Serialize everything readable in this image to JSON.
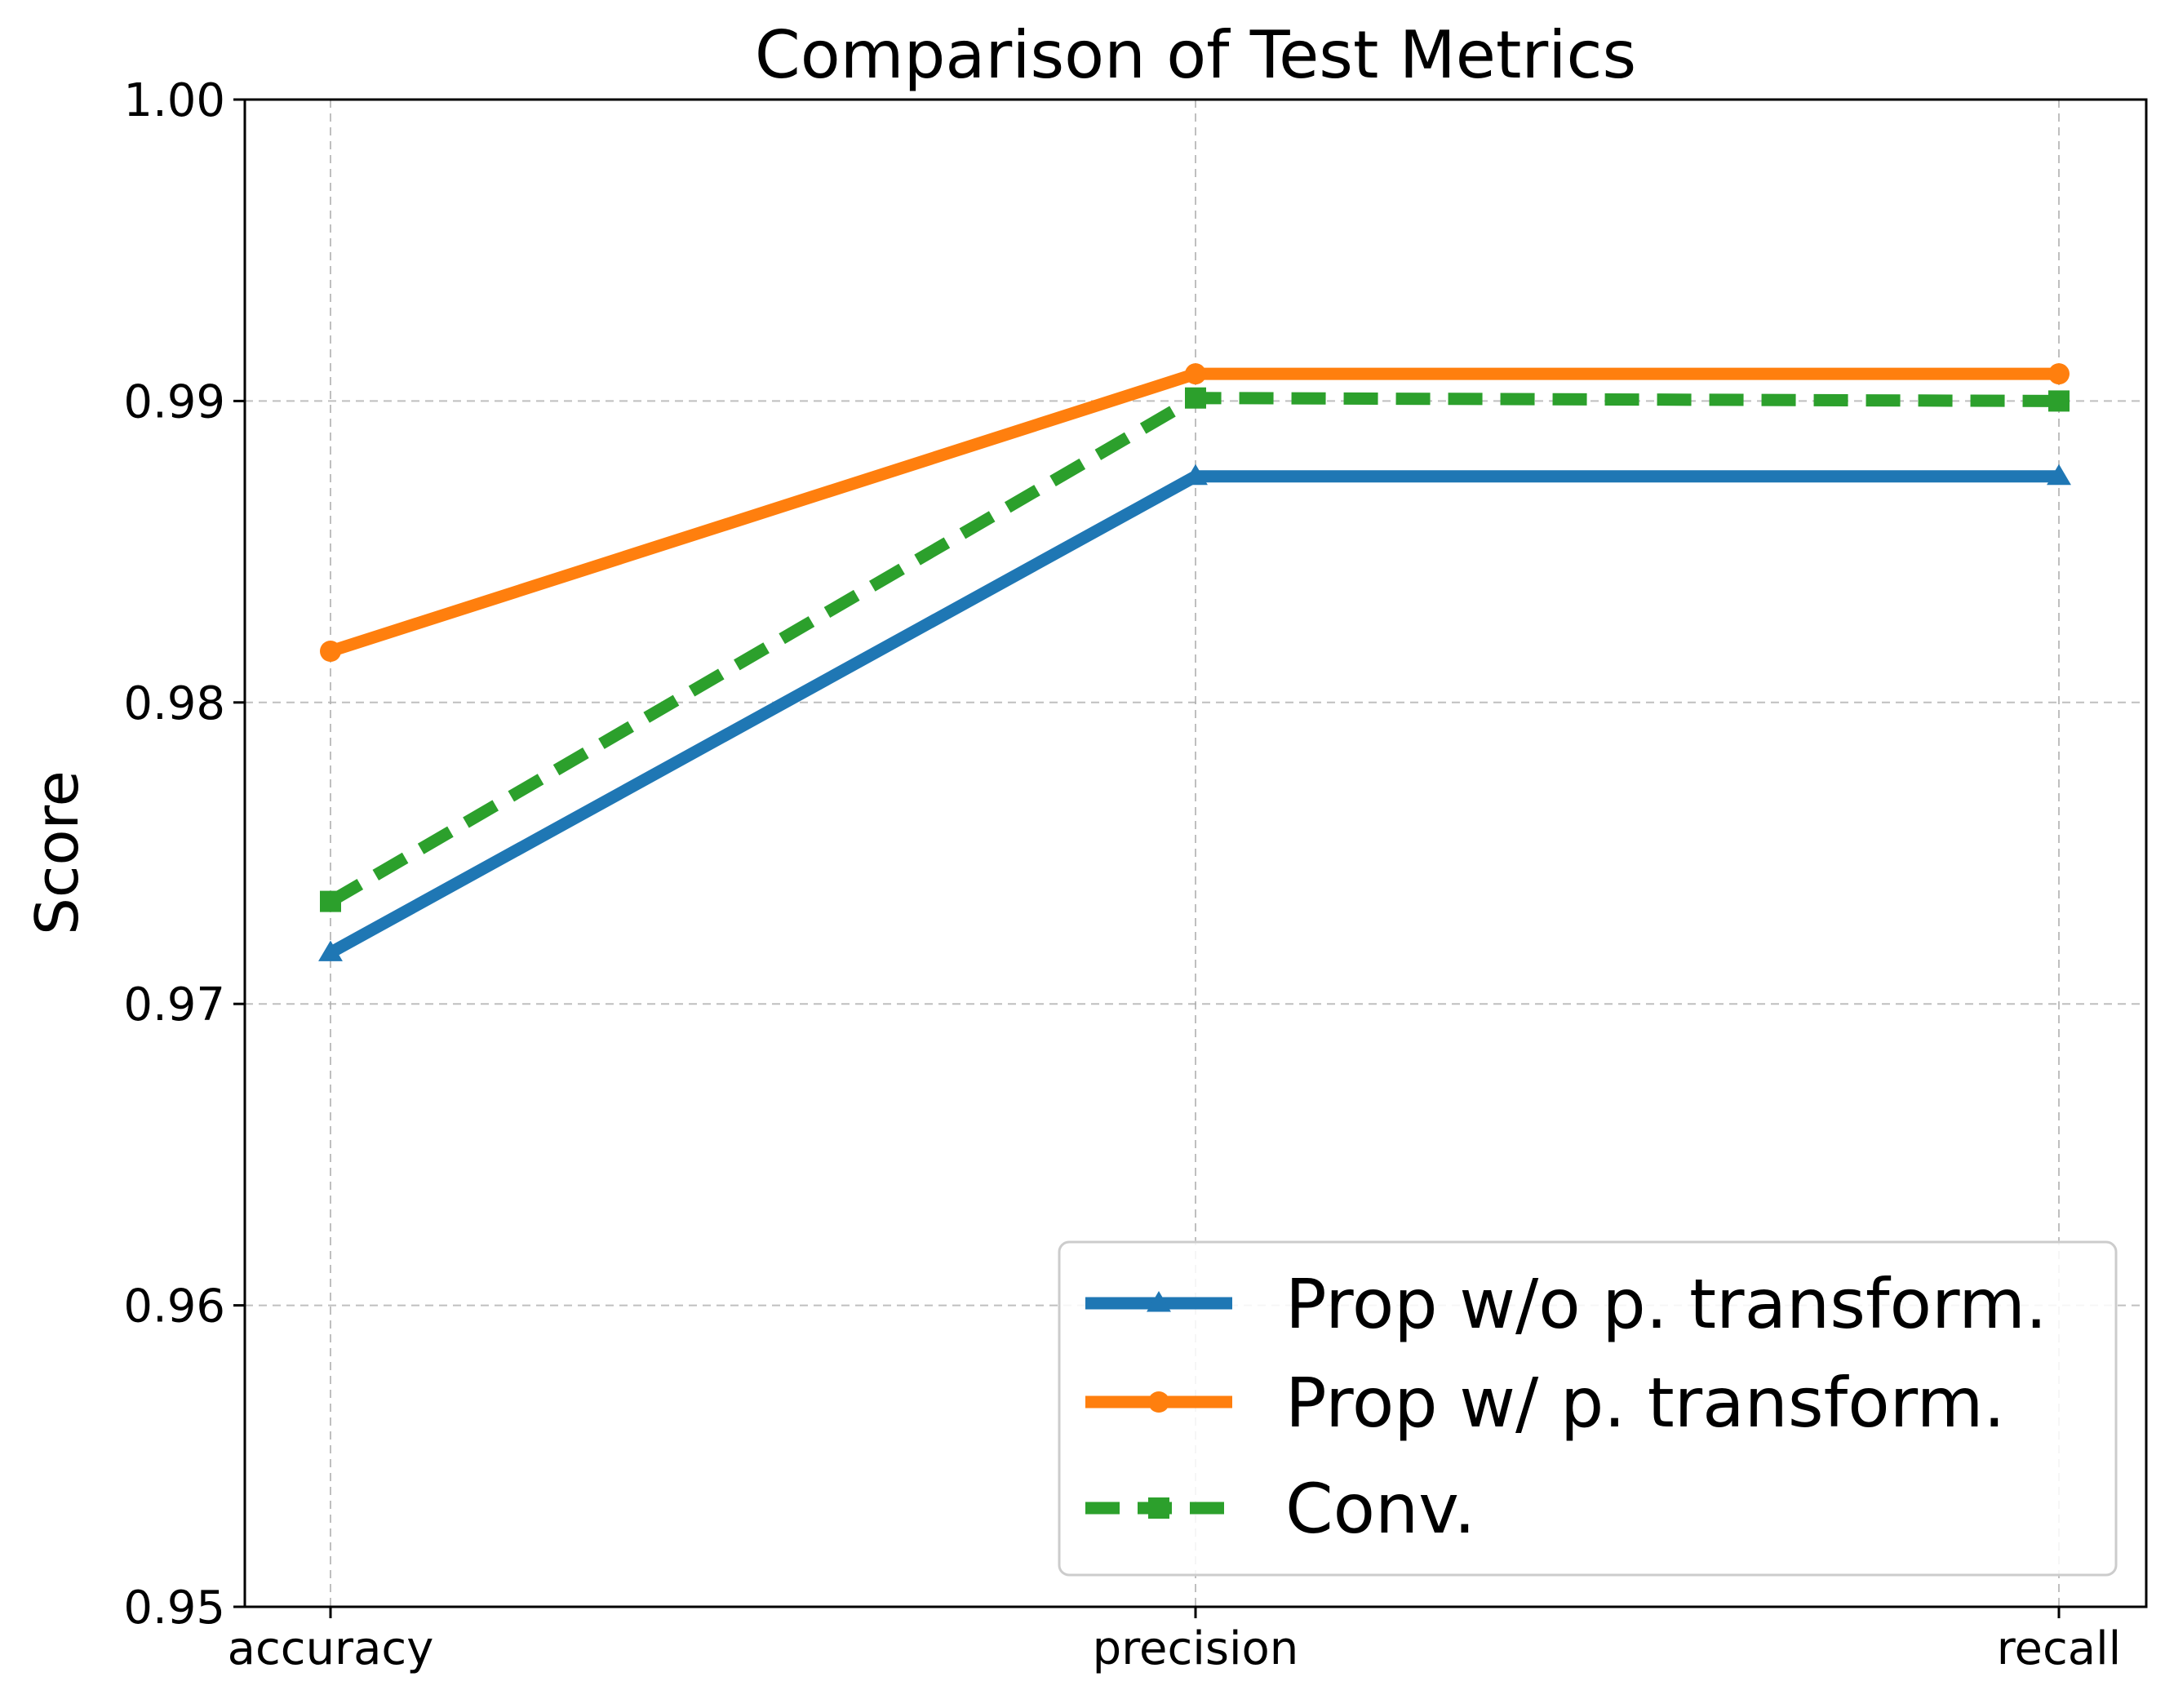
{
  "chart_data": {
    "type": "line",
    "title": "Comparison of Test Metrics",
    "xlabel": "",
    "ylabel": "Score",
    "categories": [
      "accuracy",
      "precision",
      "recall"
    ],
    "ylim": [
      0.95,
      1.0
    ],
    "yticks": [
      0.95,
      0.96,
      0.97,
      0.98,
      0.99,
      1.0
    ],
    "ytick_labels": [
      "0.95",
      "0.96",
      "0.97",
      "0.98",
      "0.99",
      "1.00"
    ],
    "grid": true,
    "legend_position": "lower-right",
    "series": [
      {
        "name": "Prop w/o p. transform.",
        "values": [
          0.9717,
          0.9875,
          0.9875
        ],
        "color": "#1f77b4",
        "marker": "triangle",
        "line_style": "solid"
      },
      {
        "name": "Prop w/ p. transform.",
        "values": [
          0.9817,
          0.9909,
          0.9909
        ],
        "color": "#ff7f0e",
        "marker": "circle",
        "line_style": "solid"
      },
      {
        "name": "Conv.",
        "values": [
          0.9734,
          0.9901,
          0.99
        ],
        "color": "#2ca02c",
        "marker": "square",
        "line_style": "dashed"
      }
    ]
  }
}
